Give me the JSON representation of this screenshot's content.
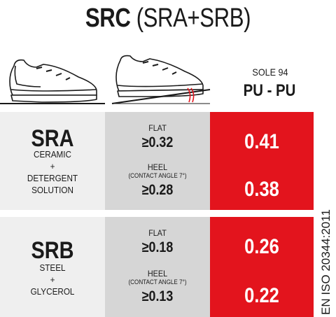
{
  "title": {
    "bold": "SRC",
    "rest": "(SRA+SRB)"
  },
  "sole": {
    "label": "SOLE 94",
    "material": "PU - PU"
  },
  "rows": [
    {
      "code": "SRA",
      "surface": "CERAMIC",
      "plus": "+",
      "lubricant_line1": "DETERGENT",
      "lubricant_line2": "SOLUTION",
      "flat_label": "FLAT",
      "flat_req": "≥0.32",
      "heel_label": "HEEL",
      "heel_note": "(CONTACT ANGLE 7°)",
      "heel_req": "≥0.28",
      "flat_value": "0.41",
      "heel_value": "0.38"
    },
    {
      "code": "SRB",
      "surface": "STEEL",
      "plus": "+",
      "lubricant_line1": "GLYCEROL",
      "flat_label": "FLAT",
      "flat_req": "≥0.18",
      "heel_label": "HEEL",
      "heel_note": "(CONTACT ANGLE 7°)",
      "heel_req": "≥0.13",
      "flat_value": "0.26",
      "heel_value": "0.22"
    }
  ],
  "standard": "EN ISO 20344:2011",
  "colors": {
    "red": "#e3141d",
    "light_gray": "#efefef",
    "mid_gray": "#d6d6d6"
  },
  "icons": [
    "shoe-flat-icon",
    "shoe-heel-icon",
    "contact-angle-icon"
  ]
}
